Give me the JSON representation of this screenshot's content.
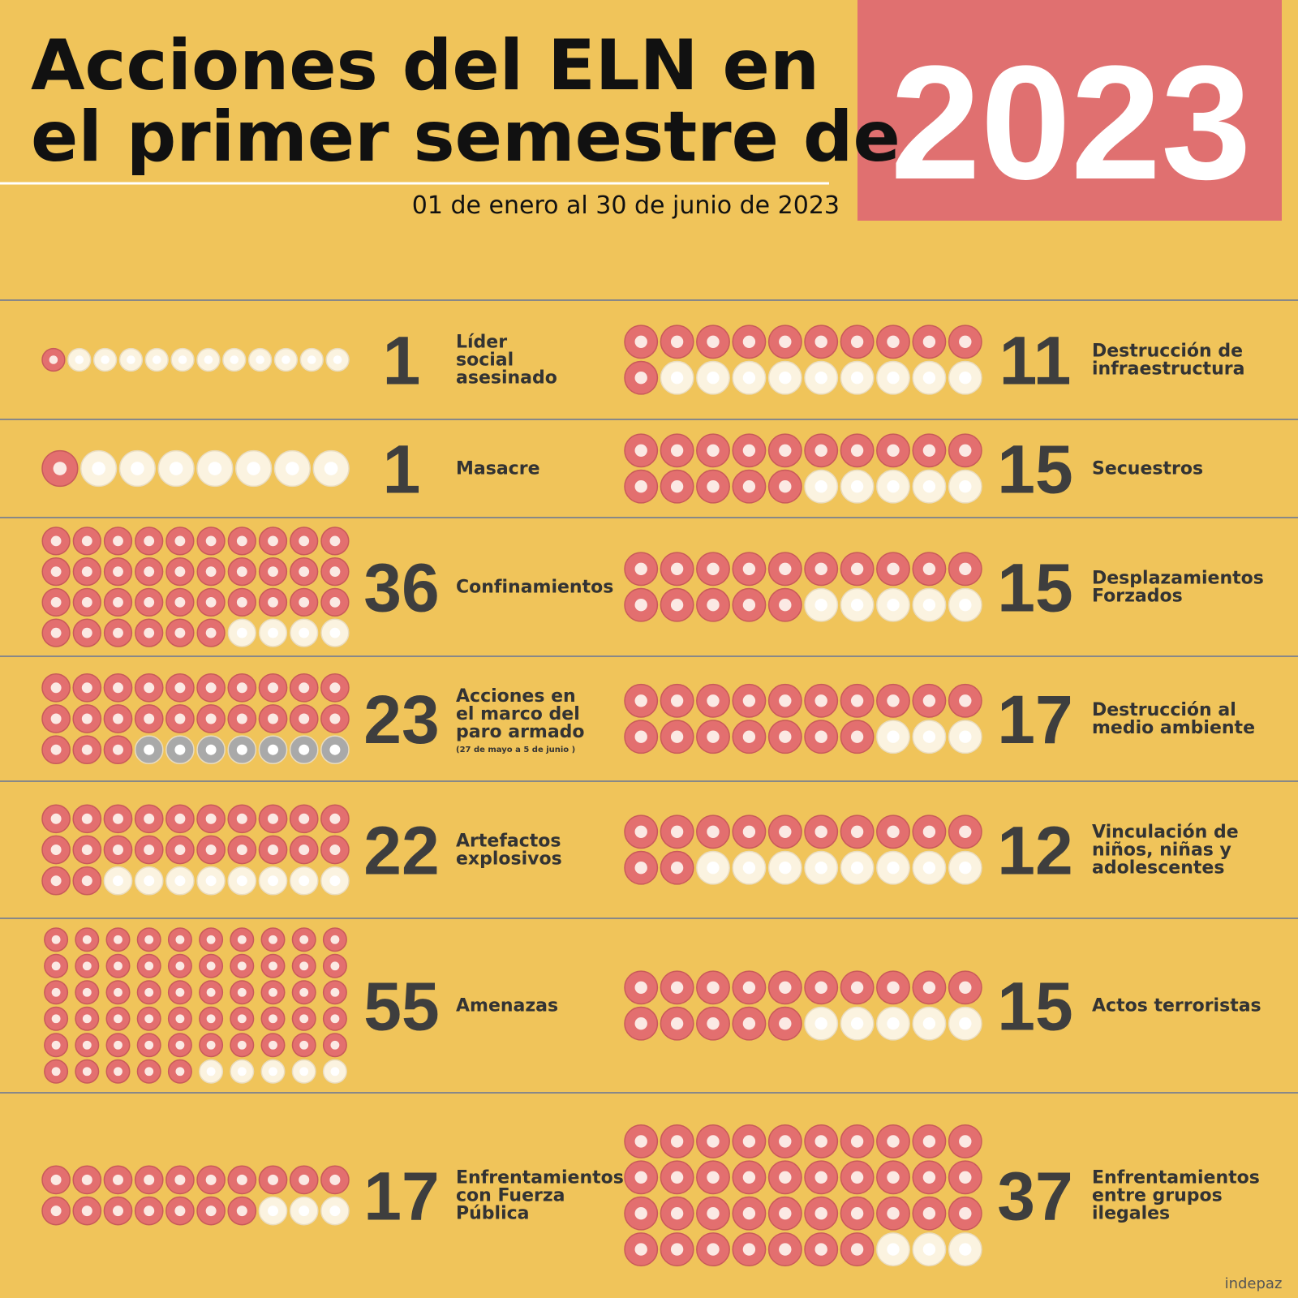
{
  "header": {
    "title_lines": [
      "Acciones del ELN en",
      "el primer semestre de"
    ],
    "year": "2023",
    "subtitle": "01 de enero al 30 de junio de 2023"
  },
  "colors": {
    "filled": "#e36f6f",
    "empty": "#fbf3e0",
    "empty_alt": "#a9a9a9"
  },
  "rows": [
    {
      "left": {
        "value": 1,
        "icon_total": 12,
        "label": [
          "Líder",
          "social",
          "asesinado"
        ]
      },
      "right": {
        "value": 11,
        "icon_total": 20,
        "label": [
          "Destrucción de",
          "infraestructura"
        ]
      }
    },
    {
      "left": {
        "value": 1,
        "icon_total": 8,
        "label": [
          "Masacre"
        ]
      },
      "right": {
        "value": 15,
        "icon_total": 20,
        "label": [
          "Secuestros"
        ]
      }
    },
    {
      "left": {
        "value": 36,
        "icon_total": 40,
        "label": [
          "Confinamientos"
        ]
      },
      "right": {
        "value": 15,
        "icon_total": 20,
        "label": [
          "Desplazamientos",
          "Forzados"
        ]
      }
    },
    {
      "left": {
        "value": 23,
        "icon_total": 30,
        "label": [
          "Acciones en",
          "el marco del",
          "paro armado"
        ],
        "note": "(27 de mayo a 5 de junio )",
        "empty_alt": true
      },
      "right": {
        "value": 17,
        "icon_total": 20,
        "label": [
          "Destrucción al",
          "medio ambiente"
        ]
      }
    },
    {
      "left": {
        "value": 22,
        "icon_total": 30,
        "label": [
          "Artefactos",
          "explosivos"
        ]
      },
      "right": {
        "value": 12,
        "icon_total": 20,
        "label": [
          "Vinculación de",
          "niños, niñas y",
          "adolescentes"
        ]
      }
    },
    {
      "left": {
        "value": 55,
        "icon_total": 60,
        "label": [
          "Amenazas"
        ]
      },
      "right": {
        "value": 15,
        "icon_total": 20,
        "label": [
          "Actos terroristas"
        ]
      }
    },
    {
      "left": {
        "value": 17,
        "icon_total": 20,
        "label": [
          "Enfrentamientos",
          "con Fuerza",
          "Pública"
        ]
      },
      "right": {
        "value": 37,
        "icon_total": 40,
        "label": [
          "Enfrentamientos",
          "entre grupos",
          "ilegales"
        ]
      }
    }
  ],
  "logo": "indepaz"
}
